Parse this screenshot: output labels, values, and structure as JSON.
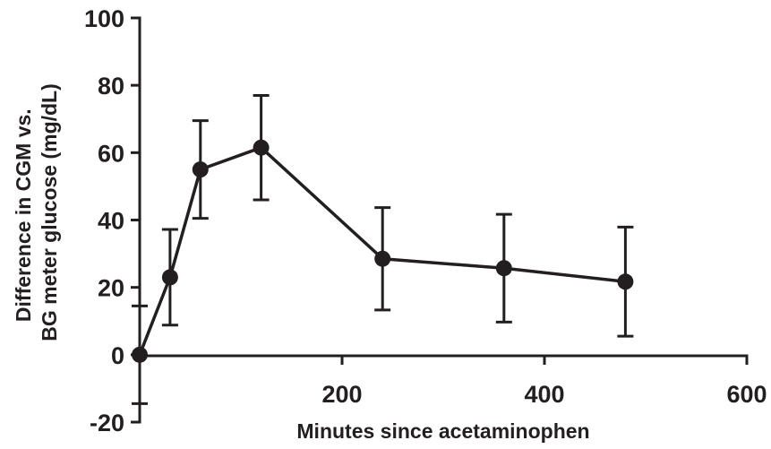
{
  "chart_data": {
    "type": "line",
    "title": "",
    "xlabel": "Minutes since acetaminophen",
    "ylabel_lines": [
      "Difference in CGM vs.",
      "BG meter glucose (mg/dL)"
    ],
    "xlim": [
      0,
      600
    ],
    "ylim": [
      -20,
      100
    ],
    "x_ticks": [
      200,
      400,
      600
    ],
    "y_ticks": [
      -20,
      0,
      20,
      40,
      60,
      80,
      100
    ],
    "grid": false,
    "legend": "none",
    "color": "#231f20",
    "series": [
      {
        "x": [
          0,
          30,
          60,
          120,
          240,
          360,
          480
        ],
        "y": [
          0,
          23,
          55,
          61.5,
          28.5,
          25.7,
          21.7
        ],
        "error": [
          14.5,
          14.2,
          14.5,
          15.5,
          15.2,
          16,
          16.2
        ]
      }
    ]
  }
}
